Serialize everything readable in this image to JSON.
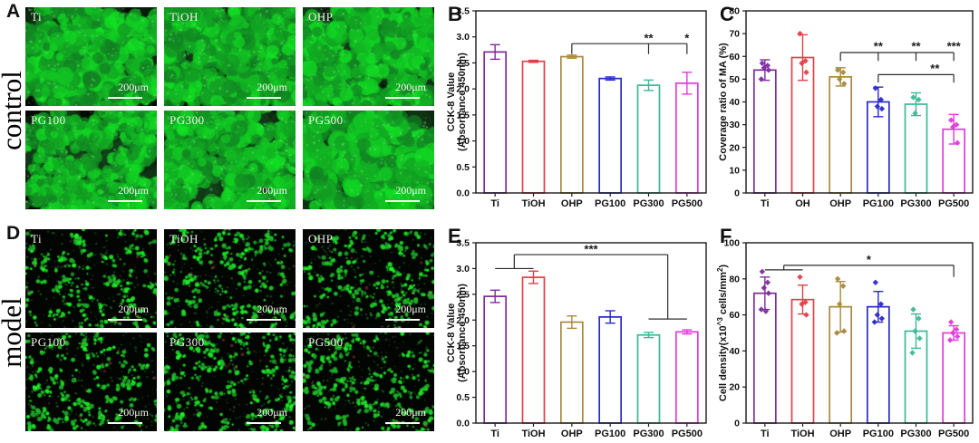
{
  "micro_panels": [
    {
      "letter": "A",
      "side_label": "control",
      "tiles": [
        {
          "label": "Ti",
          "scale_label": "200μm"
        },
        {
          "label": "TiOH",
          "scale_label": "200μm"
        },
        {
          "label": "OHP",
          "scale_label": "200μm"
        },
        {
          "label": "PG100",
          "scale_label": "200μm"
        },
        {
          "label": "PG300",
          "scale_label": "200μm"
        },
        {
          "label": "PG500",
          "scale_label": "200μm"
        }
      ]
    },
    {
      "letter": "D",
      "side_label": "model",
      "tiles": [
        {
          "label": "Ti",
          "scale_label": "200μm"
        },
        {
          "label": "TiOH",
          "scale_label": "200μm"
        },
        {
          "label": "OHP",
          "scale_label": "200μm"
        },
        {
          "label": "PG100",
          "scale_label": "200μm"
        },
        {
          "label": "PG300",
          "scale_label": "200μm"
        },
        {
          "label": "PG500",
          "scale_label": "200μm"
        }
      ]
    }
  ],
  "chart_data": [
    {
      "id": "B",
      "letter": "B",
      "type": "bar",
      "categories": [
        "Ti",
        "TiOH",
        "OHP",
        "PG100",
        "PG300",
        "PG500"
      ],
      "values": [
        2.71,
        2.53,
        2.62,
        2.2,
        2.07,
        2.11
      ],
      "errors": [
        0.14,
        0.02,
        0.03,
        0.03,
        0.1,
        0.21
      ],
      "bar_colors": [
        "#7E2D9C",
        "#E04048",
        "#A8893C",
        "#2A2AC8",
        "#3CB896",
        "#E03BD8"
      ],
      "ylabel_lines": [
        "CCK-8 Value",
        "(Absorbance 450nm)"
      ],
      "ylim": [
        0,
        3.5
      ],
      "grid": false,
      "legend": null,
      "yticks": [
        {
          "v": 0,
          "t": "0.0"
        },
        {
          "v": 0.5,
          "t": "0.5"
        },
        {
          "v": 1,
          "t": "1.0"
        },
        {
          "v": 1.5,
          "t": "1.5"
        },
        {
          "v": 2,
          "t": "2.0"
        },
        {
          "v": 2.5,
          "t": "2.5"
        },
        {
          "v": 3,
          "t": "3.0"
        },
        {
          "v": 3.5,
          "t": "3.5"
        }
      ],
      "sig": {
        "lines": [
          [
            [
              2,
              2.87
            ],
            [
              2,
              2.67
            ]
          ],
          [
            [
              2,
              2.87
            ],
            [
              5,
              2.87
            ]
          ],
          [
            [
              4,
              2.87
            ],
            [
              4,
              2.67
            ]
          ],
          [
            [
              5,
              2.87
            ],
            [
              5,
              2.67
            ]
          ]
        ],
        "stars": [
          {
            "x": 4,
            "y": 2.97,
            "t": "**"
          },
          {
            "x": 5,
            "y": 2.97,
            "t": "*"
          }
        ]
      }
    },
    {
      "id": "C",
      "letter": "C",
      "type": "bar",
      "categories": [
        "Ti",
        "OH",
        "OHP",
        "PG100",
        "PG300",
        "PG500"
      ],
      "values": [
        54,
        59.5,
        51,
        40,
        39,
        28
      ],
      "errors": [
        4.5,
        10,
        4,
        6.5,
        5,
        6.5
      ],
      "points": [
        [
          57,
          56,
          55,
          54,
          50
        ],
        [
          70,
          58,
          57,
          53
        ],
        [
          54,
          53,
          50,
          48
        ],
        [
          46,
          41,
          38,
          37
        ],
        [
          42,
          41,
          35
        ],
        [
          32,
          30,
          29,
          22
        ]
      ],
      "bar_colors": [
        "#7E2D9C",
        "#E04048",
        "#A8893C",
        "#2A2AC8",
        "#3CB896",
        "#E03BD8"
      ],
      "ylabel": "Coverage ratio of MA (%)",
      "ylim": [
        0,
        80
      ],
      "grid": false,
      "legend": null,
      "yticks": [
        {
          "v": 0,
          "t": "0"
        },
        {
          "v": 10,
          "t": "10"
        },
        {
          "v": 20,
          "t": "20"
        },
        {
          "v": 30,
          "t": "30"
        },
        {
          "v": 40,
          "t": "40"
        },
        {
          "v": 50,
          "t": "50"
        },
        {
          "v": 60,
          "t": "60"
        },
        {
          "v": 70,
          "t": "70"
        },
        {
          "v": 80,
          "t": "80"
        }
      ],
      "sig": {
        "lines": [
          [
            [
              2,
              61.7
            ],
            [
              2,
              58
            ]
          ],
          [
            [
              2,
              61.7
            ],
            [
              5,
              61.7
            ]
          ],
          [
            [
              3,
              61.7
            ],
            [
              3,
              58
            ]
          ],
          [
            [
              4,
              61.7
            ],
            [
              4,
              58
            ]
          ],
          [
            [
              5,
              61.7
            ],
            [
              5,
              58
            ]
          ],
          [
            [
              3,
              52
            ],
            [
              3,
              48.5
            ]
          ],
          [
            [
              3,
              52
            ],
            [
              5,
              52
            ]
          ],
          [
            [
              5,
              52
            ],
            [
              5,
              48.5
            ]
          ]
        ],
        "stars": [
          {
            "x": 3,
            "y": 64.2,
            "t": "**"
          },
          {
            "x": 4,
            "y": 64.2,
            "t": "**"
          },
          {
            "x": 5,
            "y": 64.2,
            "t": "***"
          },
          {
            "x": 4.5,
            "y": 54.5,
            "t": "**"
          }
        ]
      }
    },
    {
      "id": "E",
      "letter": "E",
      "type": "bar",
      "categories": [
        "Ti",
        "TiOH",
        "OHP",
        "PG100",
        "PG300",
        "PG500"
      ],
      "values": [
        2.46,
        2.83,
        1.96,
        2.06,
        1.71,
        1.77
      ],
      "errors": [
        0.12,
        0.12,
        0.12,
        0.12,
        0.05,
        0.04
      ],
      "bar_colors": [
        "#7E2D9C",
        "#E04048",
        "#A8893C",
        "#2A2AC8",
        "#3CB896",
        "#E03BD8"
      ],
      "ylabel_lines": [
        "CCK-8 Value",
        "(Absorbance 450nm)"
      ],
      "ylim": [
        0,
        3.5
      ],
      "grid": false,
      "legend": null,
      "yticks": [
        {
          "v": 0,
          "t": "0.0"
        },
        {
          "v": 0.5,
          "t": "0.5"
        },
        {
          "v": 1,
          "t": "1.0"
        },
        {
          "v": 1.5,
          "t": "1.5"
        },
        {
          "v": 2,
          "t": "2.0"
        },
        {
          "v": 2.5,
          "t": "2.5"
        },
        {
          "v": 3,
          "t": "3.0"
        },
        {
          "v": 3.5,
          "t": "3.5"
        }
      ],
      "sig": {
        "lines": [
          [
            [
              0,
              3.0
            ],
            [
              1,
              3.0
            ]
          ],
          [
            [
              0.5,
              3.0
            ],
            [
              0.5,
              3.27
            ]
          ],
          [
            [
              0.5,
              3.27
            ],
            [
              4.5,
              3.27
            ]
          ],
          [
            [
              4.5,
              3.27
            ],
            [
              4.5,
              2.02
            ]
          ],
          [
            [
              4,
              2.02
            ],
            [
              5,
              2.02
            ]
          ]
        ],
        "stars": [
          {
            "x": 2.5,
            "y": 3.37,
            "t": "***"
          }
        ]
      }
    },
    {
      "id": "F",
      "letter": "F",
      "type": "bar",
      "categories": [
        "Ti",
        "TiOH",
        "OHP",
        "PG100",
        "PG300",
        "PG500"
      ],
      "values": [
        72,
        68.5,
        64.5,
        64.5,
        51,
        50
      ],
      "errors": [
        9,
        8,
        14,
        8.5,
        9.5,
        4
      ],
      "points": [
        [
          84,
          78,
          75,
          72,
          63,
          62
        ],
        [
          81,
          67,
          66,
          60
        ],
        [
          80,
          76,
          66,
          51,
          50
        ],
        [
          78,
          66,
          60,
          58,
          56
        ],
        [
          63,
          58,
          51,
          47,
          39
        ],
        [
          56,
          52,
          50,
          48,
          46
        ]
      ],
      "bar_colors": [
        "#7E2D9C",
        "#E04048",
        "#A8893C",
        "#2A2AC8",
        "#3CB896",
        "#E03BD8"
      ],
      "ylabel_parts": [
        {
          "t": "Cell density(x10"
        },
        {
          "t": "^3",
          "sup": true
        },
        {
          "t": " cells/mm"
        },
        {
          "t": "2",
          "sup": true
        },
        {
          "t": ")"
        }
      ],
      "ylim": [
        0,
        100
      ],
      "grid": false,
      "legend": null,
      "yticks": [
        {
          "v": 0,
          "t": "0"
        },
        {
          "v": 20,
          "t": "20"
        },
        {
          "v": 40,
          "t": "40"
        },
        {
          "v": 60,
          "t": "60"
        },
        {
          "v": 80,
          "t": "80"
        },
        {
          "v": 100,
          "t": "100"
        }
      ],
      "sig": {
        "lines": [
          [
            [
              0,
              85
            ],
            [
              1,
              85
            ]
          ],
          [
            [
              0.5,
              85
            ],
            [
              0.5,
              87.5
            ]
          ],
          [
            [
              0.5,
              87.5
            ],
            [
              5,
              87.5
            ]
          ],
          [
            [
              5,
              87.5
            ],
            [
              5,
              81
            ]
          ]
        ],
        "stars": [
          {
            "x": 2.75,
            "y": 90.5,
            "t": "*"
          }
        ]
      }
    }
  ]
}
